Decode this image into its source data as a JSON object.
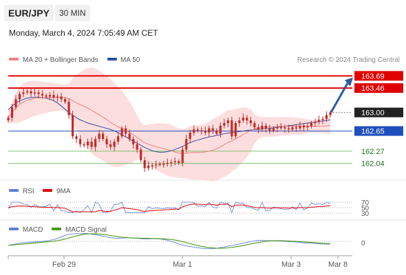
{
  "header": {
    "symbol": "EUR/JPY",
    "timeframe": "30 MIN",
    "datetime": "Monday, March 4, 2024 7:05:49 AM CET"
  },
  "colors": {
    "candle": "#c62828",
    "bollinger_fill": "#fbd3d3",
    "ma20": "#f08080",
    "ma50": "#2c4f9c",
    "resistance": "#e00000",
    "current": "#222222",
    "support_main": "#1f4fbf",
    "support_green": "#7fbf6f",
    "rsi": "#5b7fd4",
    "rsi_ma": "#dd0000",
    "macd": "#5b7fd4",
    "macd_signal": "#4a9a1a",
    "arrow": "#2c5aa0",
    "grid": "#e6e6e6"
  },
  "legend": {
    "main": [
      {
        "label": "MA 20 + Bollinger Bands",
        "color": "#f08080"
      },
      {
        "label": "MA 50",
        "color": "#2c4f9c"
      }
    ],
    "rsi": [
      {
        "label": "RSI",
        "color": "#5b7fd4"
      },
      {
        "label": "9MA",
        "color": "#dd0000"
      }
    ],
    "macd": [
      {
        "label": "MACD",
        "color": "#5b7fd4"
      },
      {
        "label": "MACD Signal",
        "color": "#4a9a1a"
      }
    ]
  },
  "watermark": "Research © 2024 Trading Central",
  "chart_data": {
    "type": "candlestick",
    "ylim": [
      161.75,
      163.85
    ],
    "x_ticks": [
      "Feb 29",
      "Mar 1",
      "Mar 3",
      "Mar 8"
    ],
    "levels": [
      {
        "value": 163.69,
        "label": "163.69",
        "kind": "resistance"
      },
      {
        "value": 163.46,
        "label": "163.46",
        "kind": "resistance"
      },
      {
        "value": 163.0,
        "label": "163.00",
        "kind": "current"
      },
      {
        "value": 162.65,
        "label": "162.65",
        "kind": "support_main"
      },
      {
        "value": 162.27,
        "label": "162.27",
        "kind": "support_green"
      },
      {
        "value": 162.04,
        "label": "162.04",
        "kind": "support_green"
      }
    ],
    "close": [
      162.9,
      163.1,
      163.25,
      163.35,
      163.38,
      163.4,
      163.36,
      163.38,
      163.35,
      163.32,
      163.3,
      163.33,
      163.28,
      163.3,
      163.25,
      163.2,
      162.95,
      162.55,
      162.5,
      162.4,
      162.38,
      162.45,
      162.35,
      162.5,
      162.6,
      162.5,
      162.4,
      162.35,
      162.45,
      162.55,
      162.7,
      162.6,
      162.5,
      162.4,
      162.3,
      162.1,
      161.95,
      162.0,
      162.0,
      162.02,
      162.03,
      162.03,
      162.05,
      162.06,
      162.08,
      162.05,
      162.3,
      162.5,
      162.62,
      162.68,
      162.66,
      162.65,
      162.62,
      162.7,
      162.66,
      162.6,
      162.75,
      162.8,
      162.85,
      162.55,
      162.8,
      162.85,
      162.9,
      162.85,
      162.8,
      162.72,
      162.68,
      162.75,
      162.7,
      162.66,
      162.7,
      162.72,
      162.72,
      162.7,
      162.68,
      162.72,
      162.7,
      162.75,
      162.72,
      162.74,
      162.8,
      162.82,
      162.86,
      162.88,
      162.95,
      163.0
    ],
    "ma50": [
      163.05,
      163.12,
      163.18,
      163.22,
      163.25,
      163.27,
      163.28,
      163.29,
      163.29,
      163.28,
      163.27,
      163.25,
      163.22,
      163.18,
      163.12,
      163.06,
      163.0,
      162.95,
      162.9,
      162.86,
      162.83,
      162.8,
      162.78,
      162.76,
      162.74,
      162.72,
      162.7,
      162.68,
      162.65,
      162.62,
      162.58,
      162.54,
      162.5,
      162.46,
      162.42,
      162.38,
      162.34,
      162.31,
      162.28,
      162.26,
      162.25,
      162.25,
      162.26,
      162.28,
      162.3,
      162.33,
      162.36,
      162.4,
      162.43,
      162.46,
      162.48,
      162.5,
      162.52,
      162.54,
      162.55,
      162.57,
      162.58,
      162.6,
      162.61,
      162.62,
      162.63,
      162.64,
      162.65,
      162.66,
      162.67,
      162.68,
      162.68,
      162.69,
      162.7,
      162.7,
      162.71,
      162.72,
      162.73,
      162.74,
      162.75,
      162.76,
      162.77,
      162.78,
      162.79,
      162.8,
      162.81,
      162.82,
      162.83,
      162.84,
      162.85,
      162.86
    ],
    "rsi": {
      "levels": [
        "70",
        "50",
        "30"
      ],
      "current_level": 66
    },
    "macd": {
      "zero_label": "0"
    }
  }
}
